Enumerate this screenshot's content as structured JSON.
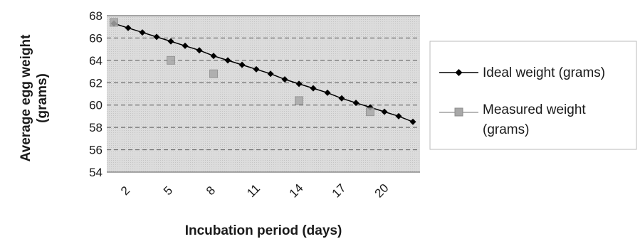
{
  "chart_data": {
    "type": "line",
    "title": "",
    "xlabel": "Incubation period (days)",
    "ylabel": [
      "Average egg weight",
      "(grams)"
    ],
    "ylim": [
      54,
      68
    ],
    "yticks": [
      54,
      56,
      58,
      60,
      62,
      64,
      66,
      68
    ],
    "x": [
      1,
      2,
      3,
      4,
      5,
      6,
      7,
      8,
      9,
      10,
      11,
      12,
      13,
      14,
      15,
      16,
      17,
      18,
      19,
      20,
      21,
      22
    ],
    "xtick_labels": [
      "2",
      "5",
      "8",
      "11",
      "14",
      "17",
      "20"
    ],
    "xtick_positions": [
      2,
      5,
      8,
      11,
      14,
      17,
      20
    ],
    "grid": "horizontal dashed",
    "legend_position": "right",
    "plot_background": "#d9d9d9",
    "series": [
      {
        "name": "Ideal weight (grams)",
        "color": "#000000",
        "marker": "diamond",
        "x": [
          1,
          2,
          3,
          4,
          5,
          6,
          7,
          8,
          9,
          10,
          11,
          12,
          13,
          14,
          15,
          16,
          17,
          18,
          19,
          20,
          21,
          22
        ],
        "values": [
          67.3,
          66.9,
          66.5,
          66.1,
          65.7,
          65.3,
          64.9,
          64.4,
          64.0,
          63.6,
          63.2,
          62.8,
          62.3,
          61.9,
          61.5,
          61.1,
          60.6,
          60.2,
          59.8,
          59.4,
          59.0,
          58.5
        ]
      },
      {
        "name": "Measured weight (grams)",
        "color": "#8c8c8c",
        "marker": "square",
        "x": [
          1,
          5,
          8,
          14,
          19
        ],
        "values": [
          67.4,
          64.0,
          62.8,
          60.4,
          59.4
        ]
      }
    ]
  }
}
